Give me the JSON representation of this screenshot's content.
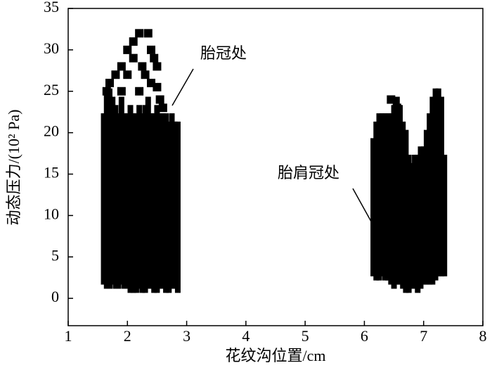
{
  "chart_data": {
    "type": "range",
    "xlabel": "花纹沟位置/cm",
    "ylabel": "动态压力/(10² Pa)",
    "xlim": [
      1,
      8
    ],
    "xticks": [
      1,
      2,
      3,
      4,
      5,
      6,
      7,
      8
    ],
    "ylim": [
      -3.3,
      35
    ],
    "yticks": [
      0,
      5,
      10,
      15,
      20,
      25,
      30,
      35
    ],
    "color": "#000000",
    "x": [
      1.6,
      1.65,
      1.7,
      1.75,
      1.8,
      1.85,
      1.9,
      1.95,
      2.0,
      2.05,
      2.1,
      2.15,
      2.2,
      2.25,
      2.3,
      2.35,
      2.4,
      2.45,
      2.5,
      2.55,
      2.6,
      2.65,
      2.7,
      2.75,
      2.8,
      2.85,
      6.15,
      6.2,
      6.25,
      6.3,
      6.35,
      6.4,
      6.45,
      6.5,
      6.55,
      6.6,
      6.65,
      6.7,
      6.75,
      6.8,
      6.85,
      6.9,
      6.95,
      7.0,
      7.05,
      7.1,
      7.15,
      7.2,
      7.25,
      7.3,
      7.35
    ],
    "low": [
      2,
      1.5,
      1.5,
      2,
      1.5,
      1.5,
      2,
      1.5,
      1.5,
      1,
      1,
      1,
      1.5,
      1,
      1,
      1.5,
      1.5,
      1,
      1,
      1.5,
      1.5,
      1,
      1,
      1.5,
      1.5,
      1,
      3,
      2.5,
      2.5,
      3,
      2.5,
      2.5,
      2,
      1.5,
      2,
      2,
      1.5,
      1,
      1,
      1.5,
      1.5,
      1,
      1.5,
      2,
      2,
      2,
      2,
      2.5,
      3,
      3,
      3
    ],
    "high": [
      22,
      25,
      25,
      24,
      23,
      22,
      24,
      22,
      22,
      23,
      22,
      22,
      23,
      22,
      23,
      24,
      22,
      22,
      23,
      22,
      22,
      22,
      21,
      22,
      21,
      21,
      19,
      21,
      22,
      22,
      22,
      22,
      22,
      23,
      24,
      23,
      21,
      20,
      17,
      16,
      17,
      17,
      18,
      18,
      20,
      22,
      24,
      25,
      25,
      24,
      17
    ],
    "points": {
      "x": [
        1.65,
        1.7,
        1.8,
        1.9,
        2.0,
        2.1,
        2.2,
        2.35,
        2.4,
        2.45,
        2.5,
        2.1,
        2.25,
        2.0,
        2.3,
        2.4,
        2.5,
        2.2,
        1.9,
        2.55,
        2.6,
        6.45,
        6.55
      ],
      "y": [
        25,
        26,
        27,
        28,
        30,
        31,
        32,
        32,
        30,
        29,
        28,
        29,
        28,
        27,
        27,
        26,
        25.5,
        25,
        25,
        24,
        23,
        24,
        23
      ]
    },
    "annotations": [
      "胎冠处",
      "胎肩冠处"
    ]
  }
}
